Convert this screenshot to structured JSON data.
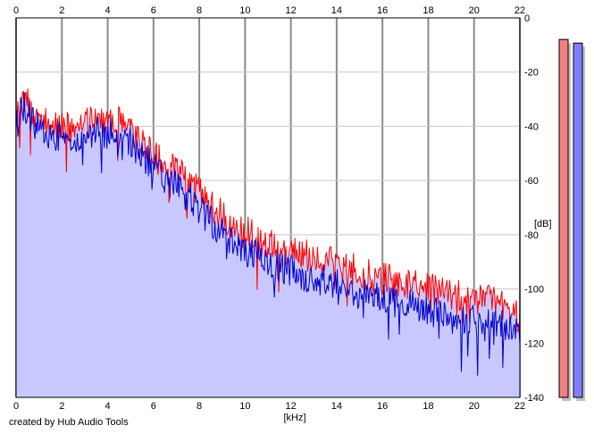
{
  "chart_data": {
    "type": "area",
    "x_unit_label": "[kHz]",
    "y_unit_label": "[dB]",
    "xlim": [
      0,
      22
    ],
    "ylim": [
      -140,
      0
    ],
    "x_ticks": [
      "0",
      "2",
      "4",
      "6",
      "8",
      "10",
      "12",
      "14",
      "16",
      "18",
      "20",
      "22"
    ],
    "y_ticks": [
      "0",
      "-20",
      "-40",
      "-60",
      "-80",
      "-100",
      "-120",
      "-140"
    ],
    "grid": true,
    "series": [
      {
        "color": "#ff0000",
        "envelope": {
          "x": [
            0,
            0.3,
            0.8,
            1.5,
            2.5,
            3.5,
            4.5,
            5.0,
            5.8,
            6.5,
            7.5,
            8.5,
            9.5,
            10.5,
            11.5,
            12.5,
            13.5,
            14.5,
            15.5,
            16.5,
            17.5,
            18.5,
            19.5,
            20.5,
            21.5,
            22
          ],
          "y": [
            -32,
            -22,
            -29,
            -33,
            -35,
            -32,
            -32,
            -36,
            -43,
            -48,
            -54,
            -63,
            -70,
            -75,
            -79,
            -81,
            -84,
            -86,
            -89,
            -91,
            -93,
            -95,
            -97,
            -98,
            -101,
            -105
          ]
        }
      },
      {
        "color": "#0000cc",
        "envelope": {
          "x": [
            0,
            0.3,
            0.8,
            1.5,
            2.5,
            3.5,
            4.5,
            5.0,
            5.8,
            6.5,
            7.5,
            8.5,
            9.5,
            10.5,
            11.5,
            12.5,
            13.5,
            14.5,
            15.5,
            16.5,
            17.5,
            18.5,
            19.5,
            20.5,
            21.5,
            22
          ],
          "y": [
            -35,
            -26,
            -33,
            -37,
            -39,
            -36,
            -37,
            -40,
            -47,
            -53,
            -60,
            -69,
            -77,
            -82,
            -86,
            -89,
            -91,
            -94,
            -96,
            -99,
            -101,
            -103,
            -105,
            -106,
            -108,
            -112
          ]
        }
      }
    ],
    "fill_color": "#c8c8ff"
  },
  "meters": [
    {
      "color": "#f08080",
      "level": 0.98
    },
    {
      "color": "#8080ff",
      "level": 0.97
    }
  ],
  "footer": {
    "credit": "created by Hub Audio Tools"
  }
}
